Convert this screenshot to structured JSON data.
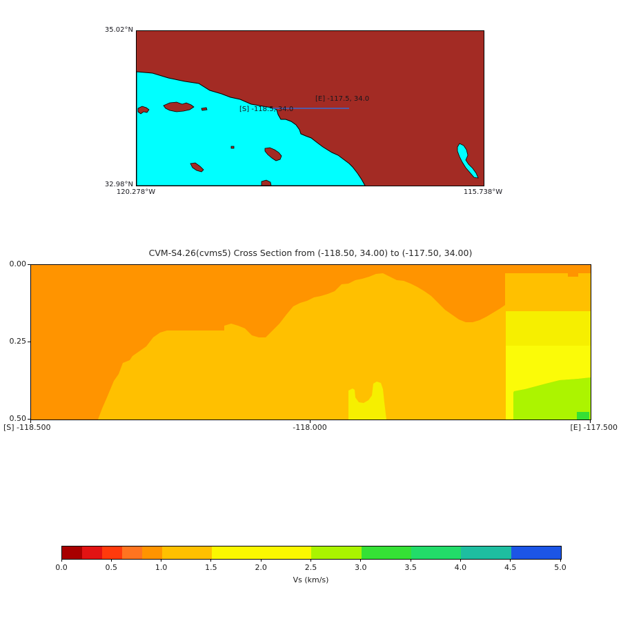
{
  "map": {
    "yticks": [
      "35.02°N",
      "32.98°N"
    ],
    "xticks": [
      "120.278°W",
      "115.738°W"
    ],
    "land_color": "#A32B24",
    "ocean_color": "#00FFFF",
    "coast_stroke": "#000000",
    "section_line": {
      "color": "#3A6BD0",
      "start_label": "[S] -118.5, 34.0",
      "end_label": "[E] -117.5, 34.0",
      "label_color": "#16161d"
    }
  },
  "cross_section": {
    "title": "CVM-S4.26(cvms5) Cross Section from (-118.50, 34.00) to (-117.50, 34.00)",
    "yticks": [
      "0.00",
      "0.25",
      "0.50"
    ],
    "xticks": [
      "[S] -118.500",
      "-118.000",
      "[E] -117.500"
    ],
    "colors": {
      "orange_08_10": "#FF9400",
      "amber_10_15": "#FFC000",
      "yellow_upper": "#F6EF00",
      "yellow_lower": "#FBFB08",
      "greenyellow_25_30": "#ACF400",
      "green_30_35": "#35DF35"
    }
  },
  "colorbar": {
    "label": "Vs (km/s)",
    "ticks": [
      "0.0",
      "0.5",
      "1.0",
      "1.5",
      "2.0",
      "2.5",
      "3.0",
      "3.5",
      "4.0",
      "4.5",
      "5.0"
    ],
    "segments": [
      {
        "range": "0.0-0.2",
        "color": "#A80000",
        "width_pct": 4
      },
      {
        "range": "0.2-0.4",
        "color": "#E21313",
        "width_pct": 4
      },
      {
        "range": "0.4-0.6",
        "color": "#FF3A0C",
        "width_pct": 4
      },
      {
        "range": "0.6-0.8",
        "color": "#FF7420",
        "width_pct": 4
      },
      {
        "range": "0.8-1.0",
        "color": "#FF9400",
        "width_pct": 4
      },
      {
        "range": "1.0-1.5",
        "color": "#FFC000",
        "width_pct": 10
      },
      {
        "range": "1.5-2.5",
        "color": "#FBF800",
        "width_pct": 20
      },
      {
        "range": "2.5-3.0",
        "color": "#AAF400",
        "width_pct": 10
      },
      {
        "range": "3.0-3.5",
        "color": "#35E135",
        "width_pct": 10
      },
      {
        "range": "3.5-4.0",
        "color": "#22DC69",
        "width_pct": 10
      },
      {
        "range": "4.0-4.5",
        "color": "#1EBEA0",
        "width_pct": 10
      },
      {
        "range": "4.5-5.0",
        "color": "#1C55E6",
        "width_pct": 10
      }
    ]
  },
  "chart_data": {
    "type": "heatmap",
    "title": "CVM-S4.26(cvms5) Cross Section from (-118.50, 34.00) to (-117.50, 34.00)",
    "xlabel_ticks": [
      "[S] -118.500",
      "-118.000",
      "[E] -117.500"
    ],
    "x_range_longitude": [
      -118.5,
      -117.5
    ],
    "y_ticks": [
      0.0,
      0.25,
      0.5
    ],
    "y_axis": "depth (top=0.00, bottom=0.50)",
    "colorbar": {
      "label": "Vs (km/s)",
      "range": [
        0.0,
        5.0
      ],
      "tick_step": 0.5,
      "bin_edges": [
        0,
        0.2,
        0.4,
        0.6,
        0.8,
        1.0,
        1.5,
        2.5,
        3.0,
        3.5,
        4.0,
        4.5,
        5.0
      ]
    },
    "regions": [
      {
        "vs_bin_kms": "0.8-1.0",
        "color": "#FF9400",
        "where": "entire west end to full depth (x<-118.38), shallow cap across whole section thinning eastward, and a deeper bowl reaching ~0.19 near x=-117.67; thin strip along top to east edge"
      },
      {
        "vs_bin_kms": "1.0-1.5",
        "color": "#FFC000",
        "where": "dominant body of the section below the orange cap from x=-118.38 to x=-117.60"
      },
      {
        "vs_bin_kms": "1.5-2.5",
        "color": "#FBF800",
        "where": "eastern block x>-117.60 below depth~0.15, plus small bottom patch near x=-117.93 below depth~0.38"
      },
      {
        "vs_bin_kms": "2.5-3.0",
        "color": "#AAF400",
        "where": "bottom-right wedge x>-117.59 below depth~0.36-0.41"
      },
      {
        "vs_bin_kms": "3.0-3.5",
        "color": "#35E135",
        "where": "small square at bottom-right corner near x=-117.52, depth~0.47-0.50"
      }
    ],
    "inset_map": {
      "extent": {
        "north": "35.02°N",
        "south": "32.98°N",
        "west": "120.278°W",
        "east": "115.738°W"
      },
      "section_endpoints": {
        "start": "[S] -118.5, 34.0",
        "end": "[E] -117.5, 34.0"
      }
    }
  }
}
